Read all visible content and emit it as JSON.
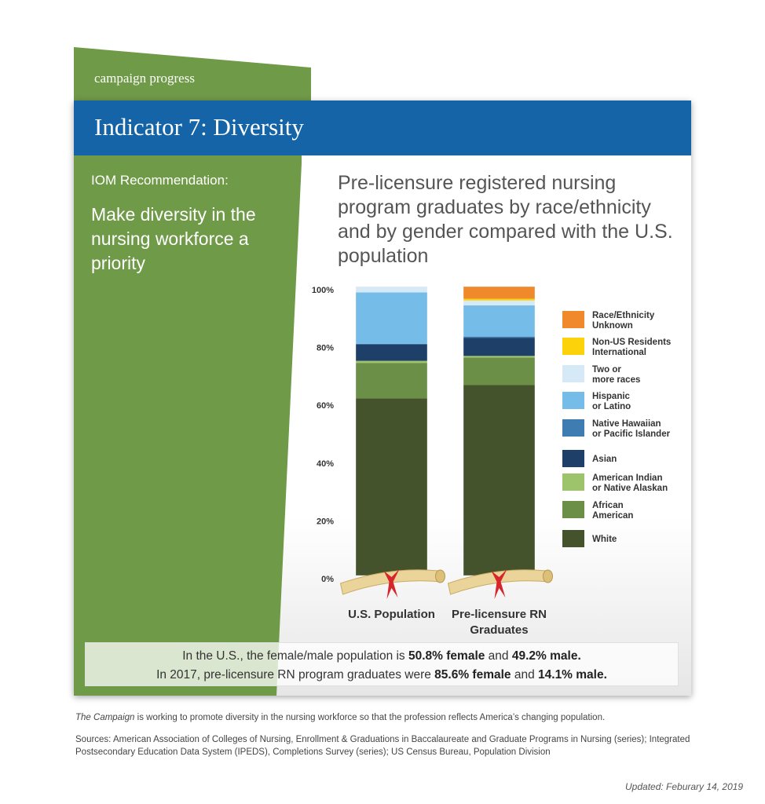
{
  "header": {
    "tab_label": "campaign progress",
    "indicator_title": "Indicator 7: Diversity"
  },
  "recommendation": {
    "label": "IOM Recommendation:",
    "text": "Make diversity in the nursing workforce a priority"
  },
  "colors": {
    "green": "#6f9a48",
    "blue": "#1464a7"
  },
  "chart_data": {
    "type": "bar",
    "stacked": true,
    "title": "Pre-licensure registered nursing program graduates by race/ethnicity and by gender compared with the U.S. population",
    "categories": [
      "U.S. Population",
      "Pre-licensure RN Graduates"
    ],
    "ylim": [
      0,
      100
    ],
    "yticks": [
      "0%",
      "20%",
      "40%",
      "60%",
      "80%",
      "100%"
    ],
    "legend_position": "right",
    "series": [
      {
        "name": "White",
        "color": "#44532b",
        "values": [
          61.3,
          65.9
        ]
      },
      {
        "name": "African American",
        "color": "#6b8f47",
        "values": [
          12.3,
          9.5
        ]
      },
      {
        "name": "American Indian or Native Alaskan",
        "color": "#9dc46b",
        "values": [
          0.7,
          0.6
        ]
      },
      {
        "name": "Asian",
        "color": "#1d3f68",
        "values": [
          5.7,
          6.3
        ]
      },
      {
        "name": "Native Hawaiian or Pacific Islander",
        "color": "#3e7cb1",
        "values": [
          0.2,
          0.4
        ]
      },
      {
        "name": "Hispanic or Latino",
        "color": "#75bde8",
        "values": [
          17.8,
          10.8
        ]
      },
      {
        "name": "Two or more races",
        "color": "#d6e9f7",
        "values": [
          2.0,
          1.7
        ]
      },
      {
        "name": "Non-US Residents International",
        "color": "#fcd20a",
        "values": [
          0,
          0.6
        ]
      },
      {
        "name": "Race/Ethnicity Unknown",
        "color": "#f0892b",
        "values": [
          0,
          4.2
        ]
      }
    ],
    "legend": [
      {
        "lines": [
          "Race/Ethnicity",
          "Unknown"
        ],
        "color": "#f0892b"
      },
      {
        "lines": [
          "Non-US Residents",
          "International"
        ],
        "color": "#fcd20a"
      },
      {
        "lines": [
          "Two or",
          "more races"
        ],
        "color": "#d6e9f7"
      },
      {
        "lines": [
          "Hispanic",
          "or Latino"
        ],
        "color": "#75bde8"
      },
      {
        "lines": [
          "Native Hawaiian",
          "or Pacific Islander"
        ],
        "color": "#3e7cb1"
      },
      {
        "lines": [
          "Asian"
        ],
        "color": "#1d3f68"
      },
      {
        "lines": [
          "American Indian",
          "or Native Alaskan"
        ],
        "color": "#9dc46b"
      },
      {
        "lines": [
          "African",
          "American"
        ],
        "color": "#6b8f47"
      },
      {
        "lines": [
          "White"
        ],
        "color": "#44532b"
      }
    ],
    "xlabels": [
      [
        "U.S. Population"
      ],
      [
        "Pre-licensure RN",
        "Graduates"
      ]
    ]
  },
  "gender_note": {
    "line1_prefix": "In the U.S., the female/male population is ",
    "line1_female": "50.8% female",
    "line1_mid": " and ",
    "line1_male": "49.2% male.",
    "line2_prefix": "In 2017, pre-licensure RN program graduates were ",
    "line2_female": "85.6% female",
    "line2_mid": " and ",
    "line2_male": "14.1% male."
  },
  "footer": {
    "campaign_italic": "The Campaign",
    "campaign_rest": " is working to promote diversity in the nursing workforce so that the profession reflects America’s changing population.",
    "sources": "Sources: American Association of Colleges of Nursing, Enrollment & Graduations in Baccalaureate and Graduate Programs in Nursing (series); Integrated Postsecondary Education Data System (IPEDS), Completions Survey (series); US Census Bureau, Population Division",
    "updated": "Updated: Feburary 14, 2019"
  }
}
